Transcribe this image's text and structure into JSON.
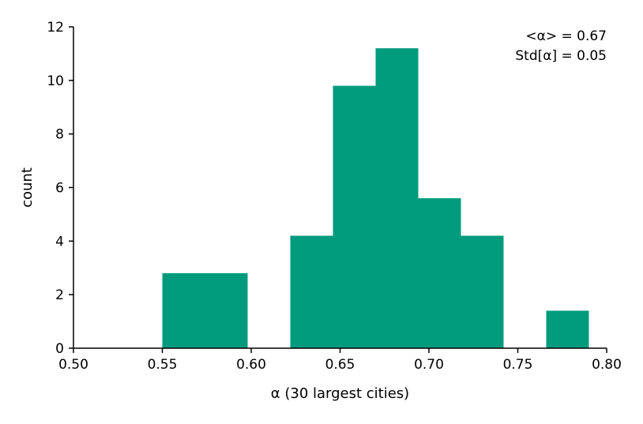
{
  "chart_data": {
    "type": "bar",
    "xlabel": "α (30 largest cities)",
    "ylabel": "count",
    "xlim": [
      0.5,
      0.8
    ],
    "ylim": [
      0,
      12
    ],
    "xticks": [
      "0.50",
      "0.55",
      "0.60",
      "0.65",
      "0.70",
      "0.75",
      "0.80"
    ],
    "yticks": [
      "0",
      "2",
      "4",
      "6",
      "8",
      "10",
      "12"
    ],
    "bins": [
      {
        "x0": 0.55,
        "x1": 0.574,
        "count": 2.8
      },
      {
        "x0": 0.574,
        "x1": 0.598,
        "count": 2.8
      },
      {
        "x0": 0.598,
        "x1": 0.622,
        "count": 0
      },
      {
        "x0": 0.622,
        "x1": 0.646,
        "count": 4.2
      },
      {
        "x0": 0.646,
        "x1": 0.67,
        "count": 9.8
      },
      {
        "x0": 0.67,
        "x1": 0.694,
        "count": 11.2
      },
      {
        "x0": 0.694,
        "x1": 0.718,
        "count": 5.6
      },
      {
        "x0": 0.718,
        "x1": 0.742,
        "count": 4.2
      },
      {
        "x0": 0.742,
        "x1": 0.766,
        "count": 0
      },
      {
        "x0": 0.766,
        "x1": 0.79,
        "count": 1.4
      }
    ],
    "bar_color": "#009B7D",
    "annotations": [
      "<α> = 0.67",
      "Std[α] = 0.05"
    ],
    "legend": "none",
    "grid": false
  }
}
